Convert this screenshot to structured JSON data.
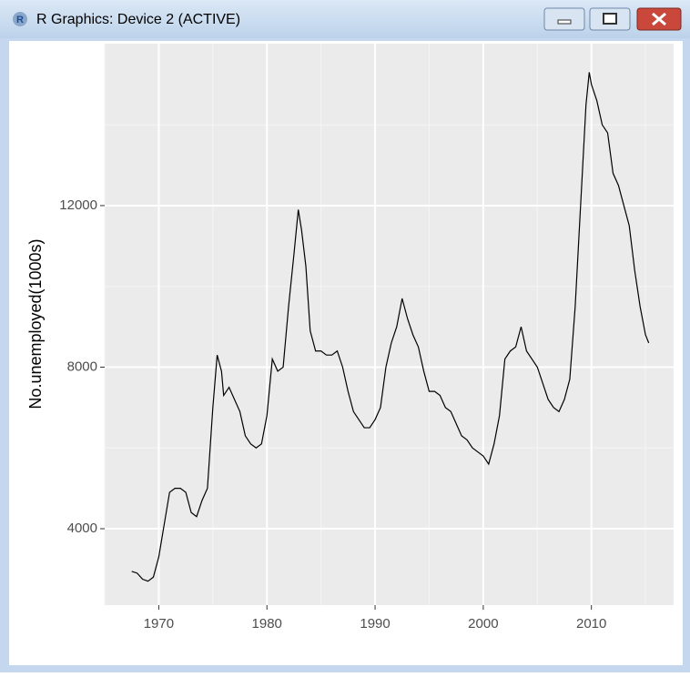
{
  "window": {
    "title": "R Graphics: Device 2 (ACTIVE)"
  },
  "chart_data": {
    "type": "line",
    "y_label": "No.unemployed(1000s)",
    "color": "#000000",
    "grid": true,
    "xlim": [
      1965.0,
      2017.6
    ],
    "ylim": [
      2108,
      16009
    ],
    "xticks": [
      1970,
      1980,
      1990,
      2000,
      2010
    ],
    "yticks": [
      4000,
      8000,
      12000
    ],
    "x_minor_grid": [
      1965,
      1975,
      1985,
      1995,
      2005,
      2015
    ],
    "y_minor_grid": [
      6000,
      10000,
      14000
    ],
    "x": [
      1967.5,
      1968.0,
      1968.5,
      1969.0,
      1969.5,
      1970.0,
      1970.5,
      1971.0,
      1971.5,
      1972.0,
      1972.5,
      1973.0,
      1973.5,
      1974.0,
      1974.5,
      1975.0,
      1975.4,
      1975.8,
      1976.0,
      1976.5,
      1977.0,
      1977.5,
      1978.0,
      1978.5,
      1979.0,
      1979.5,
      1980.0,
      1980.5,
      1981.0,
      1981.5,
      1982.0,
      1982.5,
      1982.9,
      1983.2,
      1983.6,
      1984.0,
      1984.5,
      1985.0,
      1985.5,
      1986.0,
      1986.5,
      1987.0,
      1987.5,
      1988.0,
      1988.5,
      1989.0,
      1989.5,
      1990.0,
      1990.5,
      1991.0,
      1991.5,
      1992.0,
      1992.5,
      1993.0,
      1993.5,
      1994.0,
      1994.5,
      1995.0,
      1995.5,
      1996.0,
      1996.5,
      1997.0,
      1997.5,
      1998.0,
      1998.5,
      1999.0,
      1999.5,
      2000.0,
      2000.5,
      2001.0,
      2001.5,
      2002.0,
      2002.5,
      2003.0,
      2003.5,
      2004.0,
      2004.5,
      2005.0,
      2005.5,
      2006.0,
      2006.5,
      2007.0,
      2007.5,
      2008.0,
      2008.5,
      2009.0,
      2009.5,
      2009.8,
      2010.0,
      2010.5,
      2011.0,
      2011.5,
      2012.0,
      2012.5,
      2013.0,
      2013.5,
      2014.0,
      2014.5,
      2015.0,
      2015.3
    ],
    "values": [
      2944,
      2900,
      2750,
      2700,
      2800,
      3300,
      4100,
      4900,
      5000,
      5000,
      4900,
      4400,
      4300,
      4700,
      5000,
      7000,
      8300,
      7900,
      7300,
      7500,
      7200,
      6900,
      6300,
      6100,
      6000,
      6100,
      6800,
      8200,
      7900,
      8000,
      9500,
      10800,
      11900,
      11400,
      10500,
      8900,
      8400,
      8400,
      8300,
      8300,
      8400,
      8000,
      7400,
      6900,
      6700,
      6500,
      6500,
      6700,
      7000,
      8000,
      8600,
      9000,
      9700,
      9200,
      8800,
      8500,
      7900,
      7400,
      7400,
      7300,
      7000,
      6900,
      6600,
      6300,
      6200,
      6000,
      5900,
      5800,
      5600,
      6100,
      6800,
      8200,
      8400,
      8500,
      9000,
      8400,
      8200,
      8000,
      7600,
      7200,
      7000,
      6900,
      7200,
      7700,
      9500,
      12000,
      14500,
      15300,
      15000,
      14600,
      14000,
      13800,
      12800,
      12500,
      12000,
      11500,
      10400,
      9500,
      8800,
      8600
    ]
  }
}
